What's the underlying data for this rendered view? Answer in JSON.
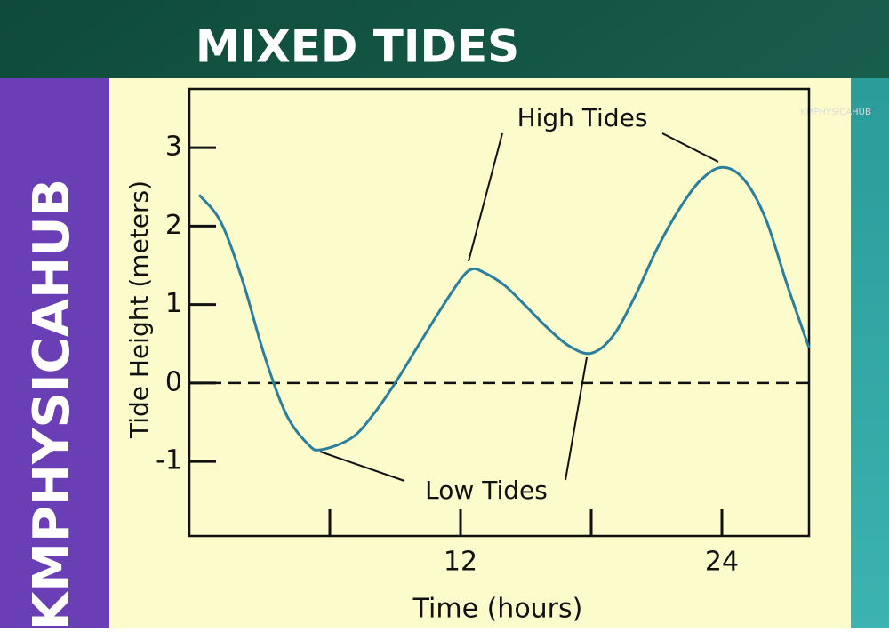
{
  "header": {
    "title": "MIXED TIDES",
    "side_text": "KMPHYSICAHUB",
    "logo_text": "KMPHYSICAHUB"
  },
  "chart_data": {
    "type": "line",
    "x_label": "Time (hours)",
    "y_label": "Tide Height (meters)",
    "x": [
      0,
      1,
      2,
      3,
      4,
      5,
      5.6,
      7,
      8,
      9,
      10,
      11,
      12,
      12.5,
      13,
      14,
      15,
      16,
      17,
      18,
      19,
      20,
      21,
      22,
      23,
      24,
      25,
      26,
      27,
      28
    ],
    "series": [
      {
        "color": "#2a7f9e",
        "values": [
          2.4,
          2.05,
          1.3,
          0.35,
          -0.4,
          -0.78,
          -0.85,
          -0.7,
          -0.4,
          0.0,
          0.45,
          0.9,
          1.32,
          1.45,
          1.42,
          1.25,
          0.98,
          0.7,
          0.47,
          0.38,
          0.6,
          1.1,
          1.7,
          2.2,
          2.58,
          2.75,
          2.6,
          2.1,
          1.25,
          0.45
        ]
      }
    ],
    "xlim": [
      -0.45,
      28
    ],
    "ylim": [
      -1.95,
      3.75
    ],
    "xticks": [
      12,
      24
    ],
    "x_minor_ticks": [
      6,
      18
    ],
    "yticks": [
      -1,
      0,
      1,
      2,
      3
    ],
    "reference_line": 0,
    "annotations": {
      "high": "High Tides",
      "low": "Low Tides"
    }
  }
}
